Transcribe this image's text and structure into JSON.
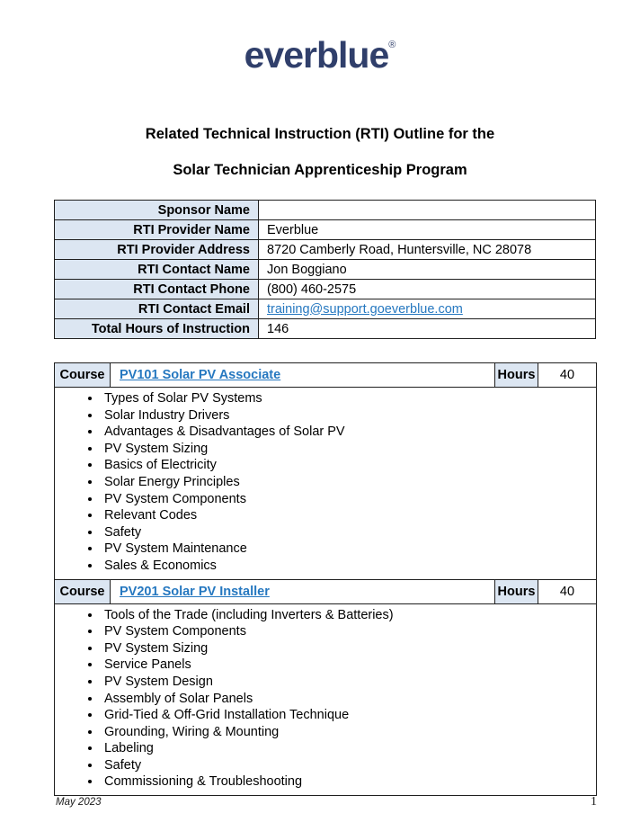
{
  "page": {
    "logo_text": "everblue",
    "logo_registered_mark": "®",
    "title_line1": "Related Technical Instruction (RTI) Outline for the",
    "title_line2": "Solar Technician Apprenticeship Program",
    "footer_date": "May 2023",
    "footer_page_number": "1"
  },
  "colors": {
    "logo_navy": "#303f6b",
    "table_header_blue": "#dce6f2",
    "link_blue": "#2678c0",
    "border_dark": "#1f1f1f"
  },
  "info_table": {
    "rows": [
      {
        "label": "Sponsor Name",
        "value": ""
      },
      {
        "label": "RTI Provider Name",
        "value": "Everblue"
      },
      {
        "label": "RTI Provider Address",
        "value": "8720 Camberly Road, Huntersville, NC 28078"
      },
      {
        "label": "RTI Contact Name",
        "value": "Jon Boggiano"
      },
      {
        "label": "RTI Contact Phone",
        "value": "(800) 460-2575"
      },
      {
        "label": "RTI Contact Email",
        "value": "training@support.goeverblue.com"
      },
      {
        "label": "Total Hours of Instruction",
        "value": "146"
      }
    ]
  },
  "courses": [
    {
      "course_label": "Course",
      "title": "PV101 Solar PV Associate",
      "hours_label": "Hours",
      "hours": "40",
      "topics": [
        "Types of Solar PV Systems",
        "Solar Industry Drivers",
        "Advantages & Disadvantages of Solar PV",
        "PV System Sizing",
        "Basics of Electricity",
        "Solar Energy Principles",
        "PV System Components",
        "Relevant Codes",
        "Safety",
        "PV System Maintenance",
        "Sales & Economics"
      ]
    },
    {
      "course_label": "Course",
      "title": "PV201 Solar PV Installer",
      "hours_label": "Hours",
      "hours": "40",
      "topics": [
        "Tools of the Trade (including Inverters & Batteries)",
        "PV System Components",
        "PV System Sizing",
        "Service Panels",
        "PV System Design",
        "Assembly of Solar Panels",
        "Grid-Tied & Off-Grid Installation Technique",
        "Grounding, Wiring & Mounting",
        "Labeling",
        "Safety",
        "Commissioning & Troubleshooting"
      ]
    }
  ]
}
